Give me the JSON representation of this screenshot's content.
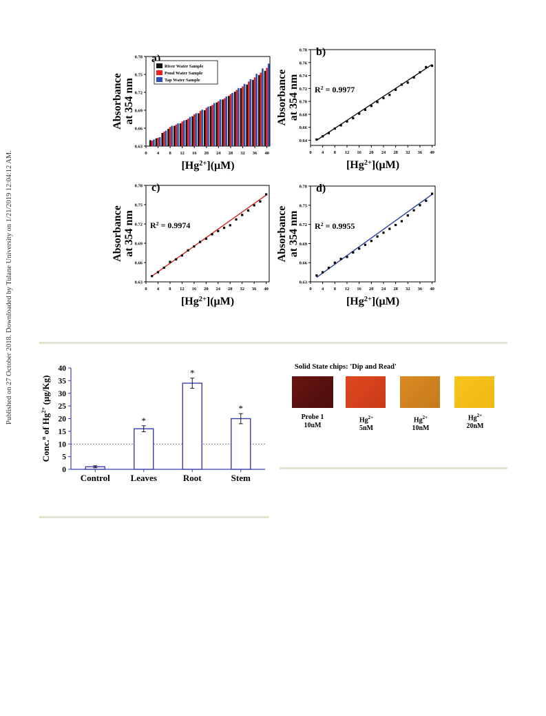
{
  "sidebar": {
    "text": "Published on 27 October 2018. Downloaded by Tulane University on 1/21/2019 12:04:12 AM."
  },
  "colors": {
    "river": "#111111",
    "pond": "#e8231f",
    "tap": "#2f4fb0",
    "fit_b": "#111111",
    "fit_c": "#d6271e",
    "fit_d": "#2a3f9c",
    "bar_outline": "#3b3fb0",
    "divider": "#e3e1cf"
  },
  "chart_data": [
    {
      "type": "bar",
      "panel": "a)",
      "ylabel": "Absorbance at 354 nm",
      "xlabel_parts": [
        "[Hg",
        "2+",
        "](μM)"
      ],
      "x_ticks": [
        "0",
        "4",
        "8",
        "12",
        "16",
        "20",
        "24",
        "28",
        "32",
        "36",
        "40"
      ],
      "y_ticks": [
        "0.63",
        "0.66",
        "0.69",
        "0.72",
        "0.75",
        "0.78"
      ],
      "xlim": [
        0,
        41
      ],
      "ylim": [
        0.63,
        0.78
      ],
      "legend_position": "top-left",
      "categories": [
        2,
        4,
        6,
        8,
        10,
        12,
        14,
        16,
        18,
        20,
        22,
        24,
        26,
        28,
        30,
        32,
        34,
        36,
        38,
        40
      ],
      "series": [
        {
          "name": "River Water Sample",
          "color": "#111111",
          "values": [
            0.64,
            0.643,
            0.652,
            0.659,
            0.664,
            0.668,
            0.674,
            0.68,
            0.685,
            0.69,
            0.697,
            0.703,
            0.708,
            0.714,
            0.721,
            0.727,
            0.733,
            0.741,
            0.749,
            0.756
          ]
        },
        {
          "name": "Pond Water Sample",
          "color": "#e8231f",
          "values": [
            0.639,
            0.644,
            0.654,
            0.662,
            0.666,
            0.671,
            0.676,
            0.683,
            0.689,
            0.694,
            0.699,
            0.705,
            0.71,
            0.717,
            0.724,
            0.73,
            0.738,
            0.745,
            0.753,
            0.761
          ]
        },
        {
          "name": "Tap Water Sample",
          "color": "#2f4fb0",
          "values": [
            0.641,
            0.645,
            0.656,
            0.664,
            0.668,
            0.673,
            0.679,
            0.685,
            0.691,
            0.696,
            0.702,
            0.708,
            0.713,
            0.719,
            0.727,
            0.734,
            0.742,
            0.751,
            0.76,
            0.768
          ]
        }
      ]
    },
    {
      "type": "scatter",
      "panel": "b)",
      "annotation_parts": [
        "R",
        "2",
        " = 0.9977"
      ],
      "ylabel": "Absorbance at 354 nm",
      "xlabel_parts": [
        "[Hg",
        "2+",
        "](μM)"
      ],
      "x_ticks": [
        "0",
        "4",
        "8",
        "12",
        "16",
        "20",
        "24",
        "28",
        "32",
        "36",
        "40"
      ],
      "y_ticks": [
        "0.64",
        "0.66",
        "0.68",
        "0.70",
        "0.72",
        "0.74",
        "0.76",
        "0.78"
      ],
      "xlim": [
        0,
        41
      ],
      "ylim": [
        0.632,
        0.78
      ],
      "fit_color": "#111111",
      "fit": [
        [
          2,
          0.64
        ],
        [
          40,
          0.757
        ]
      ],
      "x": [
        2,
        4,
        6,
        8,
        10,
        12,
        14,
        16,
        18,
        20,
        22,
        24,
        26,
        28,
        30,
        32,
        34,
        36,
        38,
        40
      ],
      "y": [
        0.641,
        0.646,
        0.651,
        0.658,
        0.663,
        0.669,
        0.674,
        0.681,
        0.687,
        0.693,
        0.699,
        0.705,
        0.71,
        0.718,
        0.726,
        0.729,
        0.737,
        0.745,
        0.753,
        0.755
      ]
    },
    {
      "type": "scatter",
      "panel": "c)",
      "annotation_parts": [
        "R",
        "2",
        " = 0.9974"
      ],
      "ylabel": "Absorbance at 354 nm",
      "xlabel_parts": [
        "[Hg",
        "2+",
        "](μM)"
      ],
      "x_ticks": [
        "0",
        "4",
        "8",
        "12",
        "16",
        "20",
        "24",
        "28",
        "32",
        "36",
        "40"
      ],
      "y_ticks": [
        "0.63",
        "0.66",
        "0.69",
        "0.72",
        "0.75",
        "0.78"
      ],
      "xlim": [
        0,
        41
      ],
      "ylim": [
        0.63,
        0.78
      ],
      "fit_color": "#d6271e",
      "fit": [
        [
          2,
          0.639
        ],
        [
          40,
          0.765
        ]
      ],
      "x": [
        2,
        4,
        6,
        8,
        10,
        12,
        14,
        16,
        18,
        20,
        22,
        24,
        26,
        28,
        30,
        32,
        34,
        36,
        38,
        40
      ],
      "y": [
        0.639,
        0.645,
        0.652,
        0.661,
        0.665,
        0.671,
        0.679,
        0.685,
        0.692,
        0.697,
        0.704,
        0.709,
        0.714,
        0.718,
        0.727,
        0.734,
        0.741,
        0.749,
        0.755,
        0.766
      ]
    },
    {
      "type": "scatter",
      "panel": "d)",
      "annotation_parts": [
        "R",
        "2",
        " = 0.9955"
      ],
      "ylabel": "Absorbance at 354 nm",
      "xlabel_parts": [
        "[Hg",
        "2+",
        "](μM)"
      ],
      "x_ticks": [
        "0",
        "4",
        "8",
        "12",
        "16",
        "20",
        "24",
        "28",
        "32",
        "36",
        "40"
      ],
      "y_ticks": [
        "0.63",
        "0.66",
        "0.69",
        "0.72",
        "0.75",
        "0.78"
      ],
      "xlim": [
        0,
        41
      ],
      "ylim": [
        0.63,
        0.78
      ],
      "fit_color": "#2a3f9c",
      "fit": [
        [
          2,
          0.637
        ],
        [
          40,
          0.767
        ]
      ],
      "x": [
        2,
        4,
        6,
        8,
        10,
        12,
        14,
        16,
        18,
        20,
        22,
        24,
        26,
        28,
        30,
        32,
        34,
        36,
        38,
        40
      ],
      "y": [
        0.64,
        0.645,
        0.652,
        0.66,
        0.666,
        0.669,
        0.676,
        0.682,
        0.688,
        0.694,
        0.701,
        0.707,
        0.713,
        0.719,
        0.725,
        0.734,
        0.742,
        0.75,
        0.757,
        0.768
      ]
    },
    {
      "type": "bar",
      "ylabel_parts": [
        "Conc.",
        "n",
        " of Hg",
        "2+",
        " (μg/Kg)"
      ],
      "categories": [
        "Control",
        "Leaves",
        "Root",
        "Stem"
      ],
      "values": [
        1,
        16,
        34,
        20
      ],
      "errors": [
        0.4,
        1.2,
        2.0,
        2.0
      ],
      "significance": [
        "",
        "*",
        "*",
        "*"
      ],
      "y_ticks": [
        "0",
        "5",
        "10",
        "15",
        "20",
        "25",
        "30",
        "35",
        "40"
      ],
      "ylim": [
        0,
        40
      ],
      "reference_line": 10
    }
  ],
  "chips": {
    "title": "Solid State chips: 'Dip and Read'",
    "items": [
      {
        "label_line1": "Probe 1",
        "label_line1_sup": "",
        "label_line2": "10uM",
        "color": "#6a1512",
        "color2": "#4a0e0c"
      },
      {
        "label_line1": "Hg",
        "label_line1_sup": "2+",
        "label_line2": "5nM",
        "color": "#e0481f",
        "color2": "#c83a18"
      },
      {
        "label_line1": "Hg",
        "label_line1_sup": "2+",
        "label_line2": "10nM",
        "color": "#d98a22",
        "color2": "#c57a1c"
      },
      {
        "label_line1": "Hg",
        "label_line1_sup": "2+",
        "label_line2": "20nM",
        "color": "#f6c61a",
        "color2": "#f0b814"
      }
    ]
  }
}
